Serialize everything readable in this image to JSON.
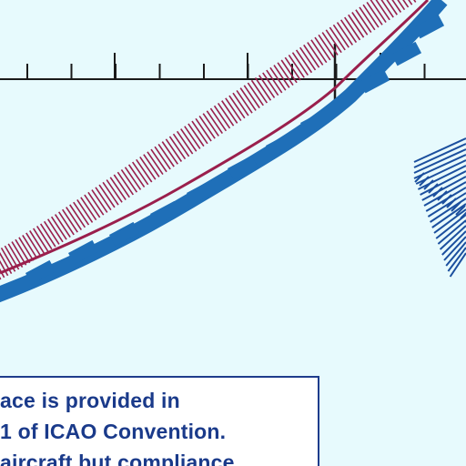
{
  "chart_note": {
    "lines": [
      "ace is provided in",
      "1 of ICAO Convention.",
      "aircraft but compliance"
    ]
  },
  "colors": {
    "background": "#e7fafd",
    "boundary_blue": "#1f6fb8",
    "boundary_maroon": "#9a1f4c",
    "tick_line": "#1a1a1a",
    "text_blue": "#1a3a8a",
    "hatch_blue": "#1b4f9e"
  },
  "map_features": {
    "scale_line": "longitude tick scale",
    "boundary": "airspace boundary with hatched band",
    "hatched_area": "restricted area pattern"
  }
}
